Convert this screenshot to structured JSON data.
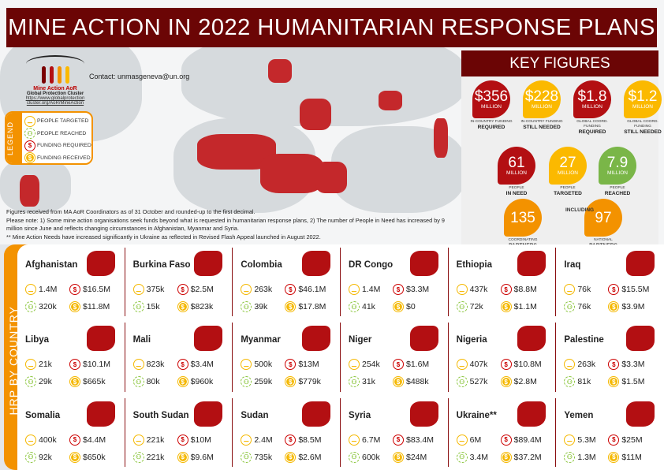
{
  "title": "MINE ACTION IN 2022 HUMANITARIAN RESPONSE PLANS",
  "logo": {
    "name": "Mine Action AoR",
    "cluster": "Global Protection Cluster",
    "link1": "https://www.globalprotection",
    "link2": "cluster.org/AoR/MineAction"
  },
  "contact": "Contact: unmasgeneva@un.org",
  "legend": {
    "title": "LEGEND",
    "items": [
      "PEOPLE TARGETED",
      "PEOPLE REACHED",
      "FUNDING REQUIRED",
      "FUNDING RECEIVED"
    ]
  },
  "notes": [
    "Figures received from MA AoR Coordinators as of 31 October and rounded-up to the first decimal.",
    "Please note: 1) Some mine action organisations seek funds beyond what is requested in humanitarian response plans, 2) The number of People in Need has increased by 9 million since June and reflects changing circumstances in Afghanistan, Myanmar and Syria.",
    "** Mine Action Needs have increased significantly in Ukraine as reflected in Revised Flash Appeal launched in August 2022."
  ],
  "key_figures": {
    "title": "KEY FIGURES",
    "items": [
      {
        "value": "$356",
        "unit": "MILLION",
        "sub": "IN-COUNTRY FUNDING",
        "label": "REQUIRED",
        "color": "#b30f12"
      },
      {
        "value": "$228",
        "unit": "MILLION",
        "sub": "IN-COUNTRY FUNDING",
        "label": "STILL NEEDED",
        "color": "#fbb900"
      },
      {
        "value": "$1.8",
        "unit": "MILLION",
        "sub": "GLOBAL COORD. FUNDING",
        "label": "REQUIRED",
        "color": "#b30f12"
      },
      {
        "value": "$1.2",
        "unit": "MILLION",
        "sub": "GLOBAL COORD. FUNDING",
        "label": "STILL NEEDED",
        "color": "#fbb900"
      },
      {
        "value": "61",
        "unit": "MILLION",
        "sub": "PEOPLE",
        "label": "IN NEED",
        "color": "#b30f12"
      },
      {
        "value": "27",
        "unit": "MILLION",
        "sub": "PEOPLE",
        "label": "TARGETED",
        "color": "#fbb900"
      },
      {
        "value": "7.9",
        "unit": "MILLION",
        "sub": "PEOPLE",
        "label": "REACHED",
        "color": "#7ab648"
      },
      {
        "value": "135",
        "unit": "",
        "sub": "COORDINATING",
        "label": "PARTNERS",
        "color": "#f39200"
      },
      {
        "value": "97",
        "unit": "",
        "sub": "NATIONAL",
        "label": "PARTNERS",
        "color": "#f39200"
      }
    ],
    "including": "INCLUDING"
  },
  "hrp_title": "HRP BY COUNTRY",
  "countries": [
    {
      "name": "Afghanistan",
      "targeted": "1.4M",
      "reached": "320k",
      "required": "$16.5M",
      "received": "$11.8M"
    },
    {
      "name": "Burkina Faso",
      "targeted": "375k",
      "reached": "15k",
      "required": "$2.5M",
      "received": "$823k"
    },
    {
      "name": "Colombia",
      "targeted": "263k",
      "reached": "39k",
      "required": "$46.1M",
      "received": "$17.8M"
    },
    {
      "name": "DR Congo",
      "targeted": "1.4M",
      "reached": "41k",
      "required": "$3.3M",
      "received": "$0"
    },
    {
      "name": "Ethiopia",
      "targeted": "437k",
      "reached": "72k",
      "required": "$8.8M",
      "received": "$1.1M"
    },
    {
      "name": "Iraq",
      "targeted": "76k",
      "reached": "76k",
      "required": "$15.5M",
      "received": "$3.9M"
    },
    {
      "name": "Libya",
      "targeted": "21k",
      "reached": "29k",
      "required": "$10.1M",
      "received": "$665k"
    },
    {
      "name": "Mali",
      "targeted": "823k",
      "reached": "80k",
      "required": "$3.4M",
      "received": "$960k"
    },
    {
      "name": "Myanmar",
      "targeted": "500k",
      "reached": "259k",
      "required": "$13M",
      "received": "$779k"
    },
    {
      "name": "Niger",
      "targeted": "254k",
      "reached": "31k",
      "required": "$1.6M",
      "received": "$488k"
    },
    {
      "name": "Nigeria",
      "targeted": "407k",
      "reached": "527k",
      "required": "$10.8M",
      "received": "$2.8M"
    },
    {
      "name": "Palestine",
      "targeted": "263k",
      "reached": "81k",
      "required": "$3.3M",
      "received": "$1.5M"
    },
    {
      "name": "Somalia",
      "targeted": "400k",
      "reached": "92k",
      "required": "$4.4M",
      "received": "$650k"
    },
    {
      "name": "South Sudan",
      "targeted": "221k",
      "reached": "221k",
      "required": "$10M",
      "received": "$9.6M"
    },
    {
      "name": "Sudan",
      "targeted": "2.4M",
      "reached": "735k",
      "required": "$8.5M",
      "received": "$2.6M"
    },
    {
      "name": "Syria",
      "targeted": "6.7M",
      "reached": "600k",
      "required": "$83.4M",
      "received": "$24M"
    },
    {
      "name": "Ukraine**",
      "targeted": "6M",
      "reached": "3.4M",
      "required": "$89.4M",
      "received": "$37.2M"
    },
    {
      "name": "Yemen",
      "targeted": "5.3M",
      "reached": "1.3M",
      "required": "$25M",
      "received": "$11M"
    }
  ]
}
